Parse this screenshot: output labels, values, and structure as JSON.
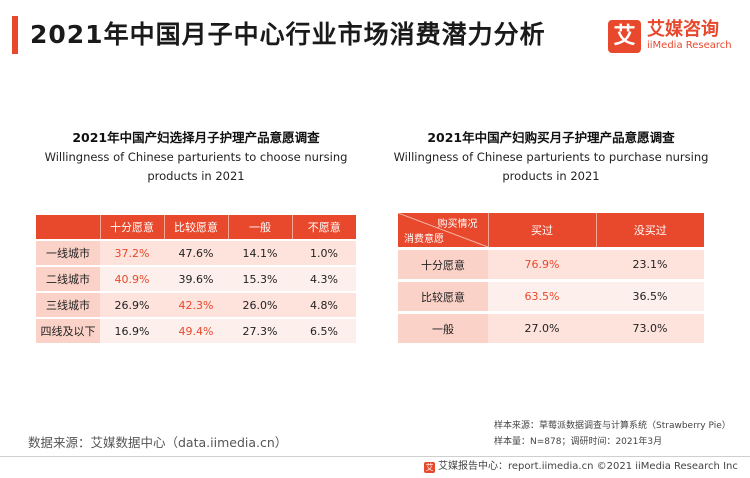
{
  "header": {
    "title": "2021年中国月子中心行业市场消费潜力分析",
    "logo_mark": "艾",
    "logo_cn": "艾媒咨询",
    "logo_en": "iiMedia Research"
  },
  "colors": {
    "accent": "#e8482c",
    "row_dark": "#fde3dc",
    "row_light": "#fdf0ec"
  },
  "chart_data": [
    {
      "type": "table",
      "title": "2021年中国产妇选择月子护理产品意愿调查",
      "subtitle_en_1": "Willingness of Chinese parturients to choose nursing",
      "subtitle_en_2": "products in 2021",
      "columns": [
        "",
        "十分愿意",
        "比较愿意",
        "一般",
        "不愿意"
      ],
      "rows": [
        {
          "label": "一线城市",
          "values": [
            "37.2%",
            "47.6%",
            "14.1%",
            "1.0%"
          ],
          "highlight": 0
        },
        {
          "label": "二线城市",
          "values": [
            "40.9%",
            "39.6%",
            "15.3%",
            "4.3%"
          ],
          "highlight": 0
        },
        {
          "label": "三线城市",
          "values": [
            "26.9%",
            "42.3%",
            "26.0%",
            "4.8%"
          ],
          "highlight": 1
        },
        {
          "label": "四线及以下",
          "values": [
            "16.9%",
            "49.4%",
            "27.3%",
            "6.5%"
          ],
          "highlight": 1
        }
      ]
    },
    {
      "type": "table",
      "title": "2021年中国产妇购买月子护理产品意愿调查",
      "subtitle_en_1": "Willingness of Chinese parturients to purchase nursing",
      "subtitle_en_2": "products in 2021",
      "corner_top": "购买情况",
      "corner_bottom": "消费意愿",
      "columns": [
        "买过",
        "没买过"
      ],
      "rows": [
        {
          "label": "十分愿意",
          "values": [
            "76.9%",
            "23.1%"
          ],
          "highlight": 0
        },
        {
          "label": "比较愿意",
          "values": [
            "63.5%",
            "36.5%"
          ],
          "highlight": 0
        },
        {
          "label": "一般",
          "values": [
            "27.0%",
            "73.0%"
          ],
          "highlight": -1
        }
      ]
    }
  ],
  "notes": {
    "line1": "样本来源：草莓派数据调查与计算系统（Strawberry Pie）",
    "line2": "样本量：N=878；调研时间：2021年3月"
  },
  "source": "数据来源：艾媒数据中心（data.iimedia.cn）",
  "footer": {
    "icon": "艾",
    "text": "艾媒报告中心：report.iimedia.cn  ©2021  iiMedia Research  Inc"
  }
}
